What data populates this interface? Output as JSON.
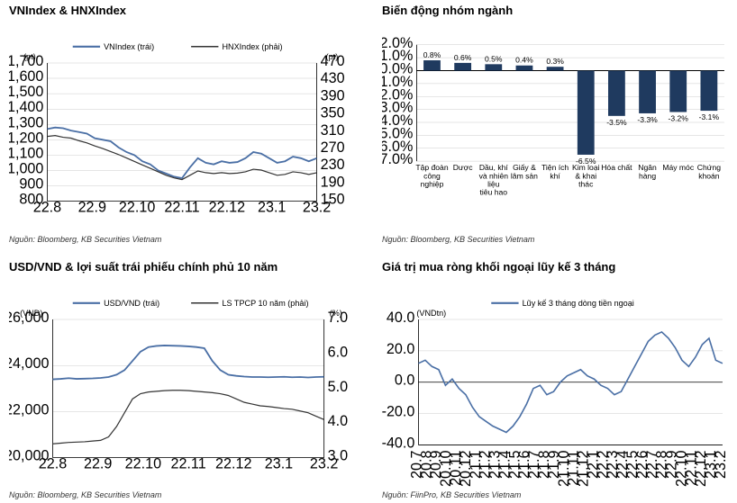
{
  "colors": {
    "series_blue": "#4a6fa5",
    "series_black": "#333333",
    "bar_fill": "#1f3a5f",
    "bg": "#ffffff",
    "grid": "#cccccc",
    "axis": "#000000"
  },
  "panels": {
    "tl": {
      "title": "VNIndex & HNXIndex",
      "source": "Nguồn: Bloomberg, KB Securities Vietnam",
      "y_left_label": "(pt)",
      "y_right_label": "(pt)",
      "legend": {
        "a": "VNIndex (trái)",
        "b": "HNXIndex (phải)"
      },
      "x_ticks": [
        "22.8",
        "22.9",
        "22.10",
        "22.11",
        "22.12",
        "23.1",
        "23.2"
      ],
      "y_left": {
        "min": 800,
        "max": 1700,
        "step": 100
      },
      "y_right": {
        "min": 150,
        "max": 470,
        "step": 40
      },
      "series_a": [
        1270,
        1280,
        1275,
        1260,
        1250,
        1240,
        1210,
        1200,
        1190,
        1150,
        1120,
        1100,
        1060,
        1040,
        1000,
        980,
        960,
        950,
        1020,
        1080,
        1050,
        1040,
        1060,
        1050,
        1055,
        1080,
        1120,
        1110,
        1080,
        1050,
        1060,
        1090,
        1080,
        1060,
        1080
      ],
      "series_b": [
        300,
        302,
        298,
        296,
        290,
        285,
        278,
        272,
        265,
        258,
        250,
        242,
        234,
        226,
        218,
        210,
        204,
        200,
        210,
        220,
        216,
        214,
        216,
        214,
        215,
        218,
        224,
        222,
        216,
        210,
        212,
        218,
        216,
        212,
        216
      ]
    },
    "tr": {
      "title": "Biến động nhóm ngành",
      "source": "Nguồn: Bloomberg, KB Securities Vietnam",
      "y": {
        "min": -7,
        "max": 2,
        "step": 1
      },
      "categories": [
        {
          "label": "Tập đoàn công nghiệp",
          "value": 0.8
        },
        {
          "label": "Dược",
          "value": 0.6
        },
        {
          "label": "Dầu, khí và nhiên liệu tiêu hao",
          "value": 0.5
        },
        {
          "label": "Giấy & lâm sản",
          "value": 0.4
        },
        {
          "label": "Tiện ích khí",
          "value": 0.3
        },
        {
          "label": "Kim loại & khai thác",
          "value": -6.5
        },
        {
          "label": "Hóa chất",
          "value": -3.5
        },
        {
          "label": "Ngân hàng",
          "value": -3.3
        },
        {
          "label": "Máy móc",
          "value": -3.2
        },
        {
          "label": "Chứng khoán",
          "value": -3.1
        }
      ]
    },
    "bl": {
      "title": "USD/VND & lợi suất trái phiếu chính phủ 10 năm",
      "source": "Nguồn: Bloomberg, KB Securities Vietnam",
      "y_left_label": "(VND)",
      "y_right_label": "(%)",
      "legend": {
        "a": "USD/VND (trái)",
        "b": "LS TPCP 10 năm (phải)"
      },
      "x_ticks": [
        "22.8",
        "22.9",
        "22.10",
        "22.11",
        "22.12",
        "23.1",
        "23.2"
      ],
      "y_left": {
        "min": 20000,
        "max": 26000,
        "step": 2000
      },
      "y_right": {
        "min": 3.0,
        "max": 7.0,
        "step": 1.0
      },
      "series_a": [
        23400,
        23420,
        23450,
        23420,
        23430,
        23440,
        23460,
        23500,
        23600,
        23800,
        24200,
        24600,
        24800,
        24850,
        24870,
        24860,
        24850,
        24830,
        24800,
        24750,
        24200,
        23800,
        23600,
        23550,
        23520,
        23500,
        23500,
        23490,
        23500,
        23510,
        23490,
        23500,
        23480,
        23500,
        23510
      ],
      "series_b": [
        3.4,
        3.42,
        3.44,
        3.45,
        3.46,
        3.48,
        3.5,
        3.6,
        3.9,
        4.3,
        4.7,
        4.85,
        4.9,
        4.92,
        4.94,
        4.95,
        4.95,
        4.94,
        4.92,
        4.9,
        4.88,
        4.85,
        4.8,
        4.7,
        4.6,
        4.55,
        4.5,
        4.48,
        4.45,
        4.42,
        4.4,
        4.35,
        4.3,
        4.2,
        4.1
      ]
    },
    "br": {
      "title": "Giá trị mua ròng khối ngoại lũy kế 3 tháng",
      "source": "Nguồn: FiinPro, KB Securities Vietnam",
      "y_left_label": "(VNDtn)",
      "legend": {
        "a": "Lũy kế 3 tháng dòng tiền ngoại"
      },
      "x_ticks": [
        "20.7",
        "20.8",
        "20.9",
        "20.10",
        "20.11",
        "20.12",
        "21.1",
        "21.2",
        "21.3",
        "21.4",
        "21.5",
        "21.6",
        "21.7",
        "21.8",
        "21.9",
        "21.10",
        "21.11",
        "21.12",
        "22.1",
        "22.2",
        "22.3",
        "22.4",
        "22.5",
        "22.6",
        "22.7",
        "22.8",
        "22.9",
        "22.10",
        "22.11",
        "22.12",
        "23.1",
        "23.2"
      ],
      "y": {
        "min": -40,
        "max": 40,
        "step": 20
      },
      "series_a": [
        12,
        14,
        10,
        8,
        -2,
        2,
        -4,
        -8,
        -16,
        -22,
        -25,
        -28,
        -30,
        -32,
        -28,
        -22,
        -14,
        -4,
        -2,
        -8,
        -6,
        0,
        4,
        6,
        8,
        4,
        2,
        -2,
        -4,
        -8,
        -6,
        2,
        10,
        18,
        26,
        30,
        32,
        28,
        22,
        14,
        10,
        16,
        24,
        28,
        14,
        12
      ]
    }
  }
}
